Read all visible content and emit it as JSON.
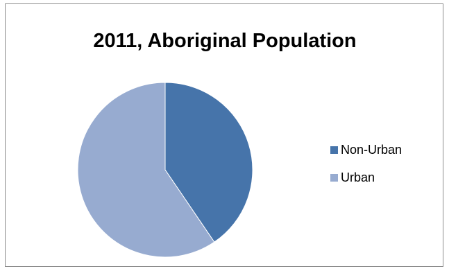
{
  "chart_data": {
    "type": "pie",
    "title": "2011, Aboriginal Population",
    "categories": [
      "Non-Urban",
      "Urban"
    ],
    "values": [
      40.5,
      59.5
    ],
    "colors": [
      "#4674AA",
      "#97ABD0"
    ],
    "legend_position": "right"
  }
}
